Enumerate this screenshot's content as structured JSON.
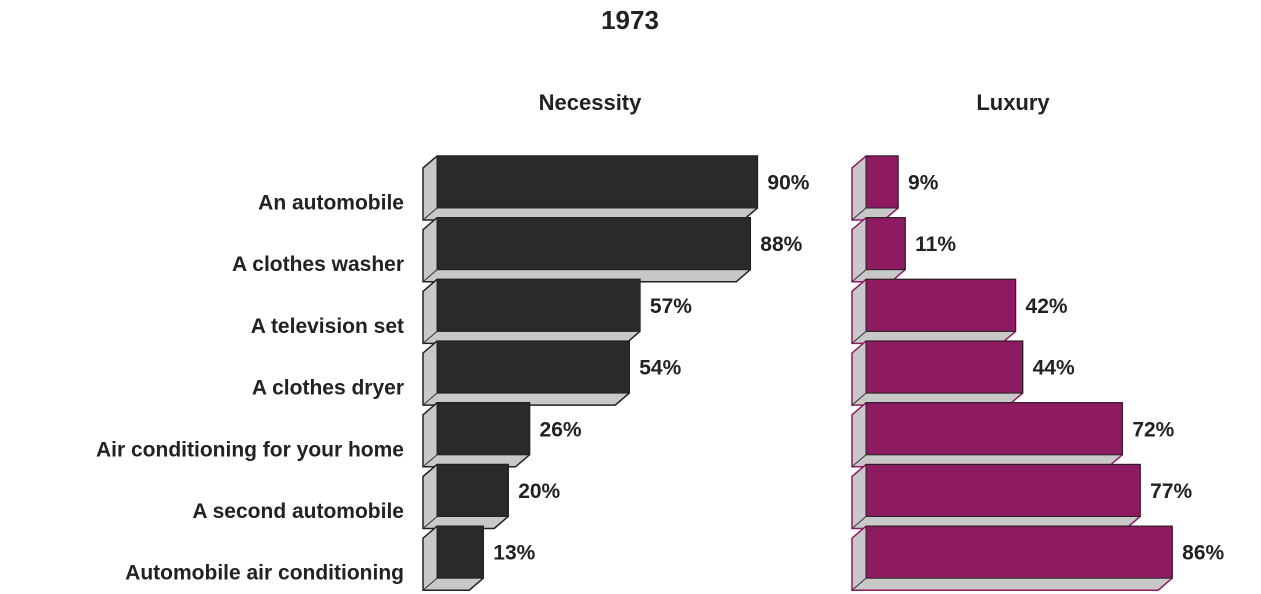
{
  "chart_data": {
    "type": "bar",
    "orientation": "horizontal",
    "title": "1973",
    "categories": [
      "An automobile",
      "A clothes washer",
      "A television set",
      "A clothes dryer",
      "Air conditioning for your home",
      "A second automobile",
      "Automobile air conditioning"
    ],
    "series": [
      {
        "name": "Necessity",
        "color": "#2a2a2a",
        "values": [
          90,
          88,
          57,
          54,
          26,
          20,
          13
        ],
        "value_labels": [
          "90%",
          "88%",
          "57%",
          "54%",
          "26%",
          "20%",
          "13%"
        ]
      },
      {
        "name": "Luxury",
        "color": "#8e1a62",
        "values": [
          9,
          11,
          42,
          44,
          72,
          77,
          86
        ],
        "value_labels": [
          "9%",
          "11%",
          "42%",
          "44%",
          "72%",
          "77%",
          "86%"
        ]
      }
    ]
  }
}
